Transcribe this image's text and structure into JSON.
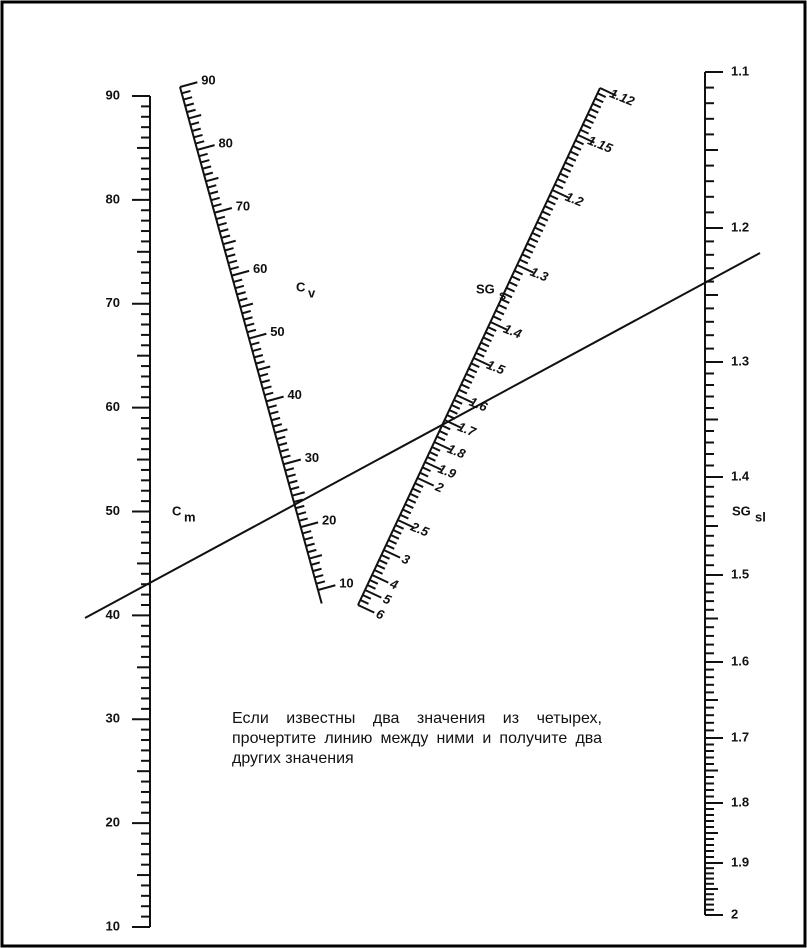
{
  "scales": [
    {
      "name": "C",
      "sub": "m",
      "labels": [
        "90",
        "80",
        "70",
        "60",
        "50",
        "40",
        "30",
        "20",
        "10"
      ]
    },
    {
      "name": "C",
      "sub": "v",
      "labels": [
        "90",
        "80",
        "70",
        "60",
        "50",
        "40",
        "30",
        "20",
        "10"
      ]
    },
    {
      "name": "SG",
      "sub": "s",
      "labels": [
        "1.12",
        "1.15",
        "1.2",
        "1.3",
        "1.4",
        "1.5",
        "1.6",
        "1.7",
        "1.8",
        "1.9",
        "2",
        "2.5",
        "3",
        "4",
        "5",
        "6"
      ]
    },
    {
      "name": "SG",
      "sub": "sl",
      "labels": [
        "1.1",
        "1.2",
        "1.3",
        "1.4",
        "1.5",
        "1.6",
        "1.7",
        "1.8",
        "1.9",
        "2"
      ]
    }
  ],
  "note": "Если известны два значения из четырех, прочертите линию между ними и получите два других значения"
}
